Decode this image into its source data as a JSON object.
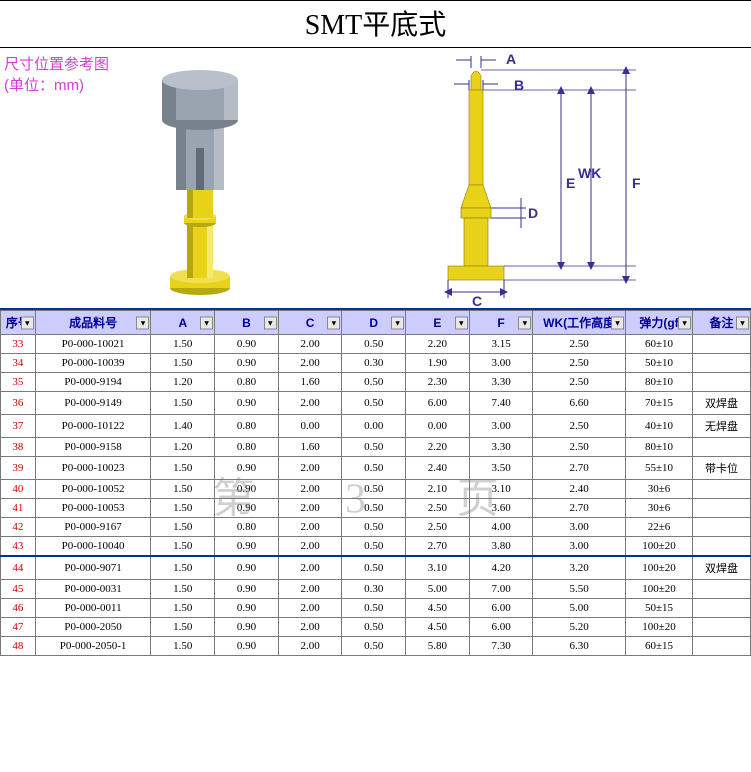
{
  "title": "SMT平底式",
  "ref_label_line1": "尺寸位置参考图",
  "ref_label_line2": "(单位：mm)",
  "watermark": "第 3 页",
  "dim_labels": {
    "A": "A",
    "B": "B",
    "C": "C",
    "D": "D",
    "E": "E",
    "F": "F",
    "WK": "WK"
  },
  "columns": {
    "seq": "序号",
    "pn": "成品料号",
    "A": "A",
    "B": "B",
    "C": "C",
    "D": "D",
    "E": "E",
    "F": "F",
    "WK": "WK(工作高度",
    "force": "弹力(gf",
    "note": "备注"
  },
  "notes": {
    "dual_pad": "双焊盘",
    "no_pad": "无焊盘",
    "with_slot": "带卡位"
  },
  "rows": [
    {
      "seq": "33",
      "pn": "P0-000-10021",
      "A": "1.50",
      "B": "0.90",
      "C": "2.00",
      "D": "0.50",
      "E": "2.20",
      "F": "3.15",
      "WK": "2.50",
      "force": "60±10",
      "note": ""
    },
    {
      "seq": "34",
      "pn": "P0-000-10039",
      "A": "1.50",
      "B": "0.90",
      "C": "2.00",
      "D": "0.30",
      "E": "1.90",
      "F": "3.00",
      "WK": "2.50",
      "force": "50±10",
      "note": ""
    },
    {
      "seq": "35",
      "pn": "P0-000-9194",
      "A": "1.20",
      "B": "0.80",
      "C": "1.60",
      "D": "0.50",
      "E": "2.30",
      "F": "3.30",
      "WK": "2.50",
      "force": "80±10",
      "note": ""
    },
    {
      "seq": "36",
      "pn": "P0-000-9149",
      "A": "1.50",
      "B": "0.90",
      "C": "2.00",
      "D": "0.50",
      "E": "6.00",
      "F": "7.40",
      "WK": "6.60",
      "force": "70±15",
      "note": "dual_pad"
    },
    {
      "seq": "37",
      "pn": "P0-000-10122",
      "A": "1.40",
      "B": "0.80",
      "C": "0.00",
      "D": "0.00",
      "E": "0.00",
      "F": "3.00",
      "WK": "2.50",
      "force": "40±10",
      "note": "no_pad"
    },
    {
      "seq": "38",
      "pn": "P0-000-9158",
      "A": "1.20",
      "B": "0.80",
      "C": "1.60",
      "D": "0.50",
      "E": "2.20",
      "F": "3.30",
      "WK": "2.50",
      "force": "80±10",
      "note": ""
    },
    {
      "seq": "39",
      "pn": "P0-000-10023",
      "A": "1.50",
      "B": "0.90",
      "C": "2.00",
      "D": "0.50",
      "E": "2.40",
      "F": "3.50",
      "WK": "2.70",
      "force": "55±10",
      "note": "with_slot"
    },
    {
      "seq": "40",
      "pn": "P0-000-10052",
      "A": "1.50",
      "B": "0.90",
      "C": "2.00",
      "D": "0.50",
      "E": "2.10",
      "F": "3.10",
      "WK": "2.40",
      "force": "30±6",
      "note": ""
    },
    {
      "seq": "41",
      "pn": "P0-000-10053",
      "A": "1.50",
      "B": "0.90",
      "C": "2.00",
      "D": "0.50",
      "E": "2.50",
      "F": "3.60",
      "WK": "2.70",
      "force": "30±6",
      "note": ""
    },
    {
      "seq": "42",
      "pn": "P0-000-9167",
      "A": "1.50",
      "B": "0.80",
      "C": "2.00",
      "D": "0.50",
      "E": "2.50",
      "F": "4.00",
      "WK": "3.00",
      "force": "22±6",
      "note": ""
    },
    {
      "seq": "43",
      "pn": "P0-000-10040",
      "A": "1.50",
      "B": "0.90",
      "C": "2.00",
      "D": "0.50",
      "E": "2.70",
      "F": "3.80",
      "WK": "3.00",
      "force": "100±20",
      "note": ""
    },
    {
      "seq": "44",
      "pn": "P0-000-9071",
      "A": "1.50",
      "B": "0.90",
      "C": "2.00",
      "D": "0.50",
      "E": "3.10",
      "F": "4.20",
      "WK": "3.20",
      "force": "100±20",
      "note": "dual_pad",
      "sep": true
    },
    {
      "seq": "45",
      "pn": "P0-000-0031",
      "A": "1.50",
      "B": "0.90",
      "C": "2.00",
      "D": "0.30",
      "E": "5.00",
      "F": "7.00",
      "WK": "5.50",
      "force": "100±20",
      "note": ""
    },
    {
      "seq": "46",
      "pn": "P0-000-0011",
      "A": "1.50",
      "B": "0.90",
      "C": "2.00",
      "D": "0.50",
      "E": "4.50",
      "F": "6.00",
      "WK": "5.00",
      "force": "50±15",
      "note": ""
    },
    {
      "seq": "47",
      "pn": "P0-000-2050",
      "A": "1.50",
      "B": "0.90",
      "C": "2.00",
      "D": "0.50",
      "E": "4.50",
      "F": "6.00",
      "WK": "5.20",
      "force": "100±20",
      "note": ""
    },
    {
      "seq": "48",
      "pn": "P0-000-2050-1",
      "A": "1.50",
      "B": "0.90",
      "C": "2.00",
      "D": "0.50",
      "E": "5.80",
      "F": "7.30",
      "WK": "6.30",
      "force": "60±15",
      "note": ""
    }
  ],
  "styling": {
    "header_bg": "#ccccff",
    "header_fg": "#000099",
    "seq_color": "#cc0000",
    "ref_color": "#d63cd6",
    "accent_border": "#003399",
    "grid_color": "#7a7a7a",
    "pin_body_color": "#e8d31a",
    "pin_shade_color": "#b8a810",
    "plunger_color": "#9aa4b0",
    "plunger_shade": "#78828e",
    "dim_line_color": "#3b2e8f",
    "title_fontsize": 28,
    "table_fontsize": 11
  }
}
